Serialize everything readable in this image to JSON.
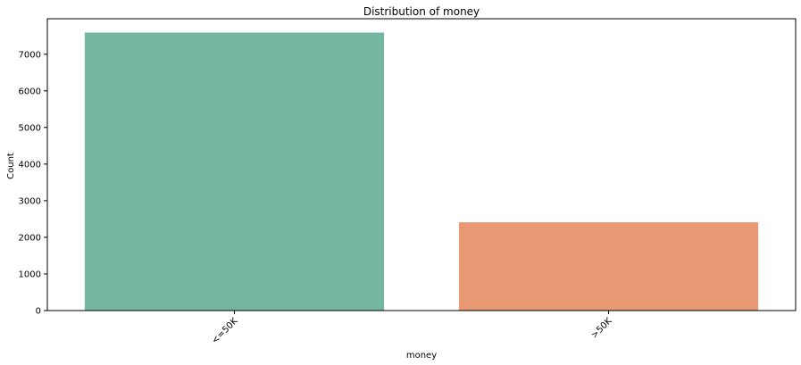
{
  "chart_data": {
    "type": "bar",
    "title": "Distribution of money",
    "xlabel": "money",
    "ylabel": "Count",
    "categories": [
      "<=50K",
      ">50K"
    ],
    "values": [
      7590,
      2410
    ],
    "colors": [
      "#74b6a2",
      "#e99874"
    ],
    "ylim": [
      0,
      7969
    ],
    "yticks": [
      0,
      1000,
      2000,
      3000,
      4000,
      5000,
      6000,
      7000
    ],
    "xtick_rotation": 45,
    "grid": false,
    "legend": "none"
  }
}
